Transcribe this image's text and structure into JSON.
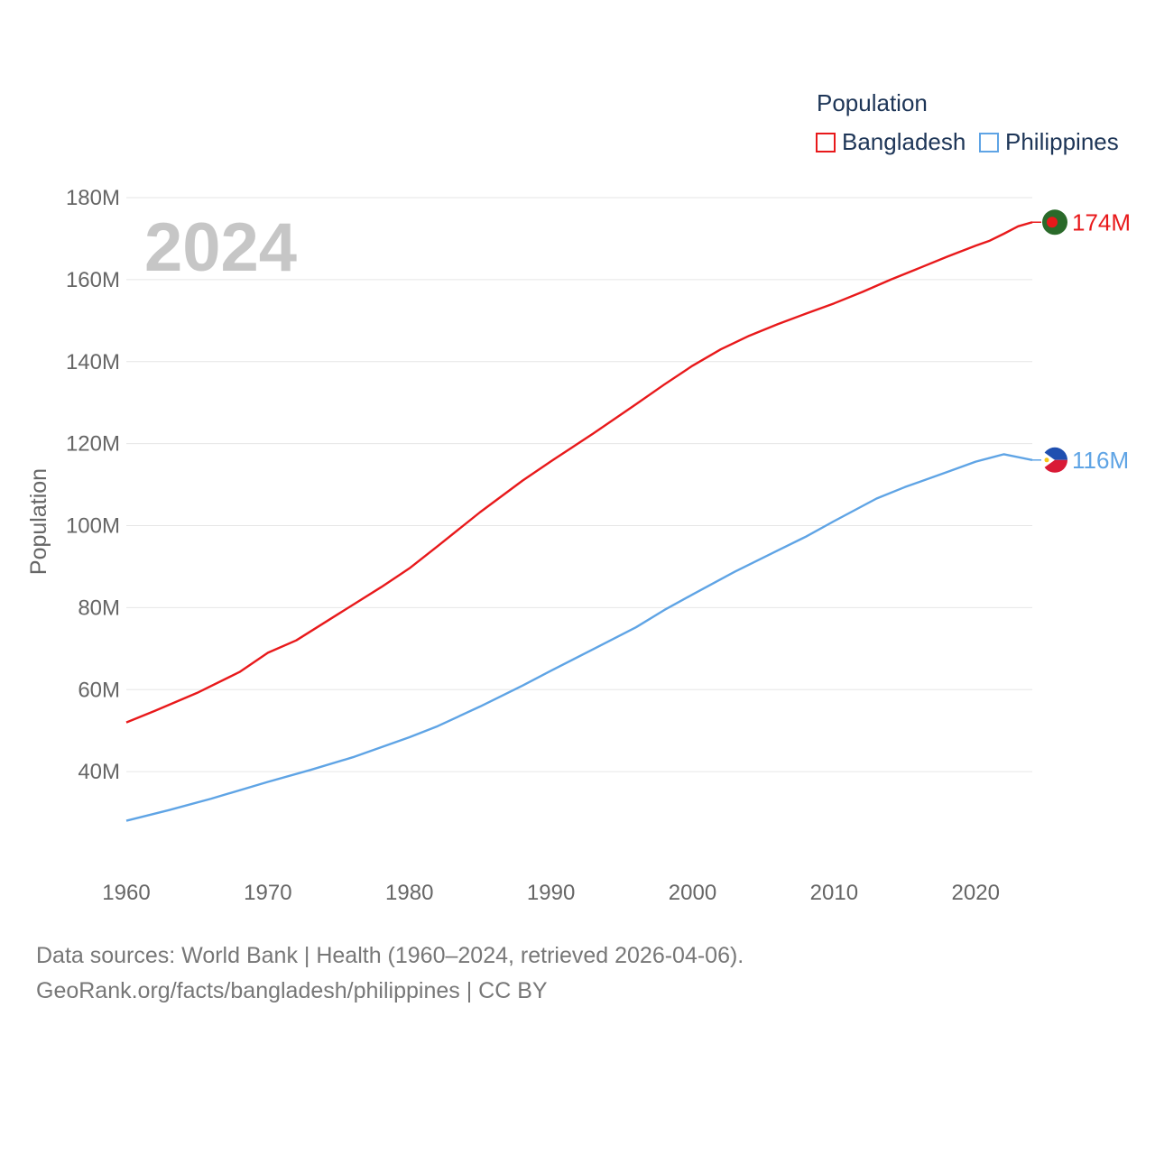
{
  "legend": {
    "title": "Population",
    "items": [
      {
        "name": "Bangladesh",
        "color": "#e8191b"
      },
      {
        "name": "Philippines",
        "color": "#5fa4e5"
      }
    ]
  },
  "footer": {
    "line1": "Data sources: World Bank | Health (1960–2024, retrieved 2026-04-06).",
    "line2": "GeoRank.org/facts/bangladesh/philippines | CC BY"
  },
  "chart_data": {
    "type": "line",
    "title": "Population",
    "xlabel": "",
    "ylabel": "Population",
    "year_label": "2024",
    "xlim": [
      1960,
      2024
    ],
    "ylim": [
      20000000,
      180000000
    ],
    "x_ticks": [
      1960,
      1970,
      1980,
      1990,
      2000,
      2010,
      2020
    ],
    "y_ticks": [
      {
        "value": 40000000,
        "label": "40M"
      },
      {
        "value": 60000000,
        "label": "60M"
      },
      {
        "value": 80000000,
        "label": "80M"
      },
      {
        "value": 100000000,
        "label": "100M"
      },
      {
        "value": 120000000,
        "label": "120M"
      },
      {
        "value": 140000000,
        "label": "140M"
      },
      {
        "value": 160000000,
        "label": "160M"
      },
      {
        "value": 180000000,
        "label": "180M"
      }
    ],
    "series": [
      {
        "name": "Bangladesh",
        "color": "#e8191b",
        "end_label": "174M",
        "points": [
          [
            1960,
            52000000
          ],
          [
            1962,
            54800000
          ],
          [
            1965,
            59200000
          ],
          [
            1968,
            64300000
          ],
          [
            1970,
            69000000
          ],
          [
            1972,
            72000000
          ],
          [
            1975,
            78500000
          ],
          [
            1978,
            85000000
          ],
          [
            1980,
            89600000
          ],
          [
            1982,
            95000000
          ],
          [
            1985,
            103300000
          ],
          [
            1988,
            111000000
          ],
          [
            1990,
            115700000
          ],
          [
            1993,
            122500000
          ],
          [
            1996,
            129600000
          ],
          [
            1998,
            134400000
          ],
          [
            2000,
            139000000
          ],
          [
            2002,
            143000000
          ],
          [
            2004,
            146300000
          ],
          [
            2006,
            149100000
          ],
          [
            2008,
            151700000
          ],
          [
            2010,
            154200000
          ],
          [
            2012,
            157000000
          ],
          [
            2014,
            160000000
          ],
          [
            2016,
            162800000
          ],
          [
            2018,
            165600000
          ],
          [
            2020,
            168300000
          ],
          [
            2021,
            169500000
          ],
          [
            2022,
            171200000
          ],
          [
            2023,
            173000000
          ],
          [
            2024,
            174000000
          ]
        ]
      },
      {
        "name": "Philippines",
        "color": "#5fa4e5",
        "end_label": "116M",
        "points": [
          [
            1960,
            28000000
          ],
          [
            1963,
            30600000
          ],
          [
            1966,
            33400000
          ],
          [
            1970,
            37500000
          ],
          [
            1973,
            40400000
          ],
          [
            1976,
            43500000
          ],
          [
            1980,
            48400000
          ],
          [
            1982,
            51100000
          ],
          [
            1985,
            55900000
          ],
          [
            1988,
            61000000
          ],
          [
            1990,
            64600000
          ],
          [
            1993,
            69900000
          ],
          [
            1996,
            75200000
          ],
          [
            1998,
            79400000
          ],
          [
            2000,
            83200000
          ],
          [
            2003,
            88800000
          ],
          [
            2006,
            93900000
          ],
          [
            2008,
            97300000
          ],
          [
            2010,
            101100000
          ],
          [
            2013,
            106600000
          ],
          [
            2015,
            109400000
          ],
          [
            2018,
            113100000
          ],
          [
            2020,
            115600000
          ],
          [
            2022,
            117400000
          ],
          [
            2024,
            116000000
          ]
        ]
      }
    ]
  }
}
